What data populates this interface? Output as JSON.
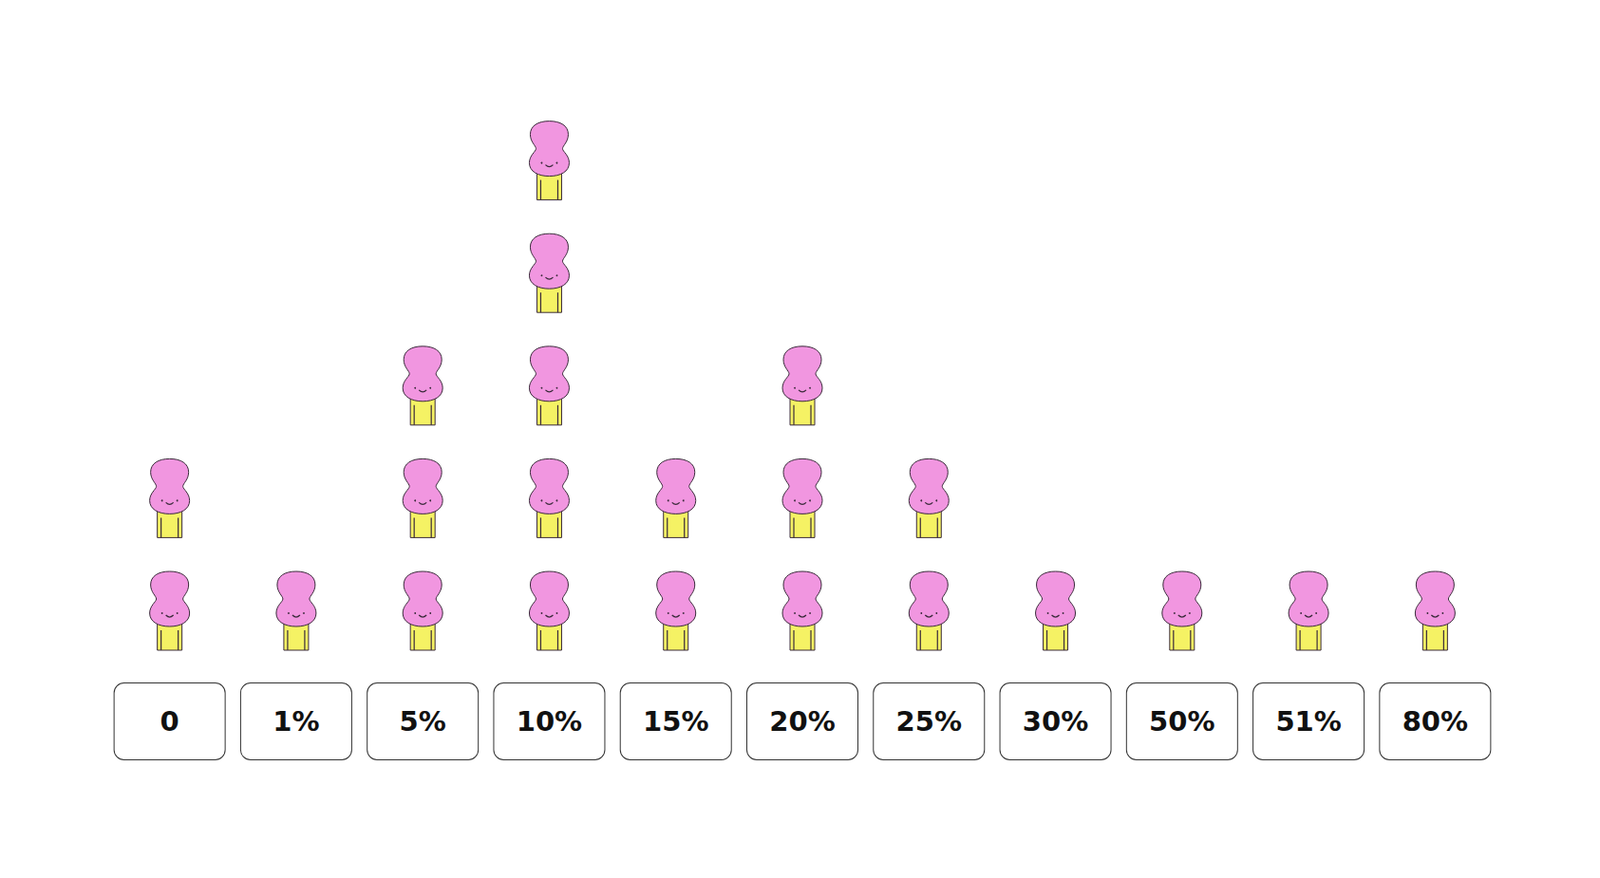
{
  "chart_data": {
    "type": "pictograph",
    "categories": [
      "0",
      "1%",
      "5%",
      "10%",
      "15%",
      "20%",
      "25%",
      "30%",
      "50%",
      "51%",
      "80%"
    ],
    "values": [
      2,
      1,
      3,
      5,
      2,
      3,
      2,
      1,
      1,
      1,
      1
    ],
    "color": "#f196e0",
    "tick_labels": "x"
  }
}
